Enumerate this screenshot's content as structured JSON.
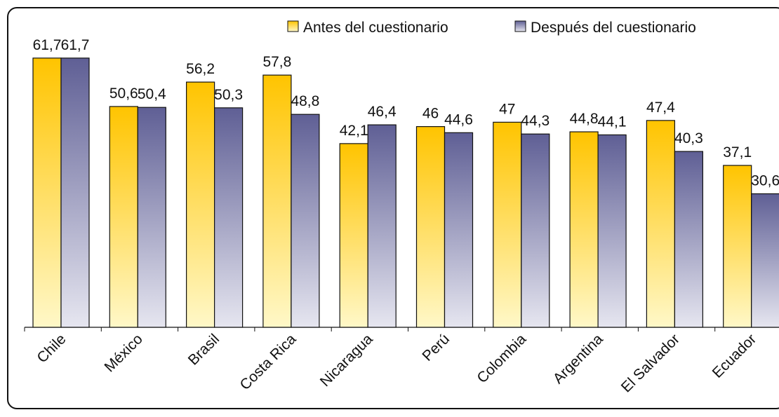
{
  "chart_data": {
    "type": "bar",
    "categories": [
      "Chile",
      "México",
      "Brasil",
      "Costa Rica",
      "Nicaragua",
      "Perú",
      "Colombia",
      "Argentina",
      "El Salvador",
      "Ecuador"
    ],
    "series": [
      {
        "name": "Antes del cuestionario",
        "values": [
          61.7,
          50.6,
          56.2,
          57.8,
          42.1,
          46,
          47,
          44.8,
          47.4,
          37.1
        ]
      },
      {
        "name": "Después del cuestionario",
        "values": [
          61.7,
          50.4,
          50.3,
          48.8,
          46.4,
          44.6,
          44.3,
          44.1,
          40.3,
          30.6
        ]
      }
    ],
    "data_labels": [
      [
        "61,7",
        "50,6",
        "56,2",
        "57,8",
        "42,1",
        "46",
        "47",
        "44,8",
        "47,4",
        "37,1"
      ],
      [
        "61,7",
        "50,4",
        "50,3",
        "48,8",
        "46,4",
        "44,6",
        "44,3",
        "44,1",
        "40,3",
        "30,6"
      ]
    ],
    "ylim": [
      0,
      70
    ],
    "legend_position": "top-right",
    "grid": false,
    "colors": {
      "antes_top": "#ffc400",
      "antes_bottom": "#fff8c8",
      "despues_top": "#5f5f95",
      "despues_bottom": "#e6e6f0",
      "bar_border": "#111111"
    }
  }
}
